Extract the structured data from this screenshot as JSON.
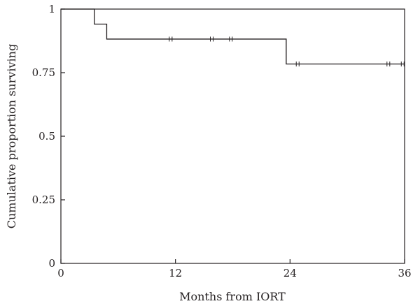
{
  "chart_data": {
    "type": "line",
    "subtype": "kaplan-meier-step",
    "title": "",
    "xlabel": "Months from IORT",
    "ylabel": "Cumulative proportion surviving",
    "xlim": [
      0,
      36
    ],
    "ylim": [
      0,
      1
    ],
    "x_ticks": [
      0,
      12,
      24,
      36
    ],
    "x_tick_labels": [
      "0",
      "12",
      "24",
      "36"
    ],
    "y_ticks": [
      0,
      0.25,
      0.5,
      0.75,
      1
    ],
    "y_tick_labels": [
      "0",
      "0.25",
      "0.5",
      "0.75",
      "1"
    ],
    "grid": false,
    "legend": "none",
    "series": [
      {
        "steps": [
          {
            "x": 0,
            "y": 1.0
          },
          {
            "x": 3.5,
            "y": 0.941
          },
          {
            "x": 4.8,
            "y": 0.882
          },
          {
            "x": 23.6,
            "y": 0.784
          }
        ],
        "end_x": 36,
        "censored": [
          {
            "x": 11.5,
            "y": 0.882
          },
          {
            "x": 15.8,
            "y": 0.882
          },
          {
            "x": 17.8,
            "y": 0.882
          },
          {
            "x": 24.8,
            "y": 0.784
          },
          {
            "x": 34.3,
            "y": 0.784
          },
          {
            "x": 35.8,
            "y": 0.784
          }
        ]
      }
    ],
    "line_color": "#231f20"
  }
}
